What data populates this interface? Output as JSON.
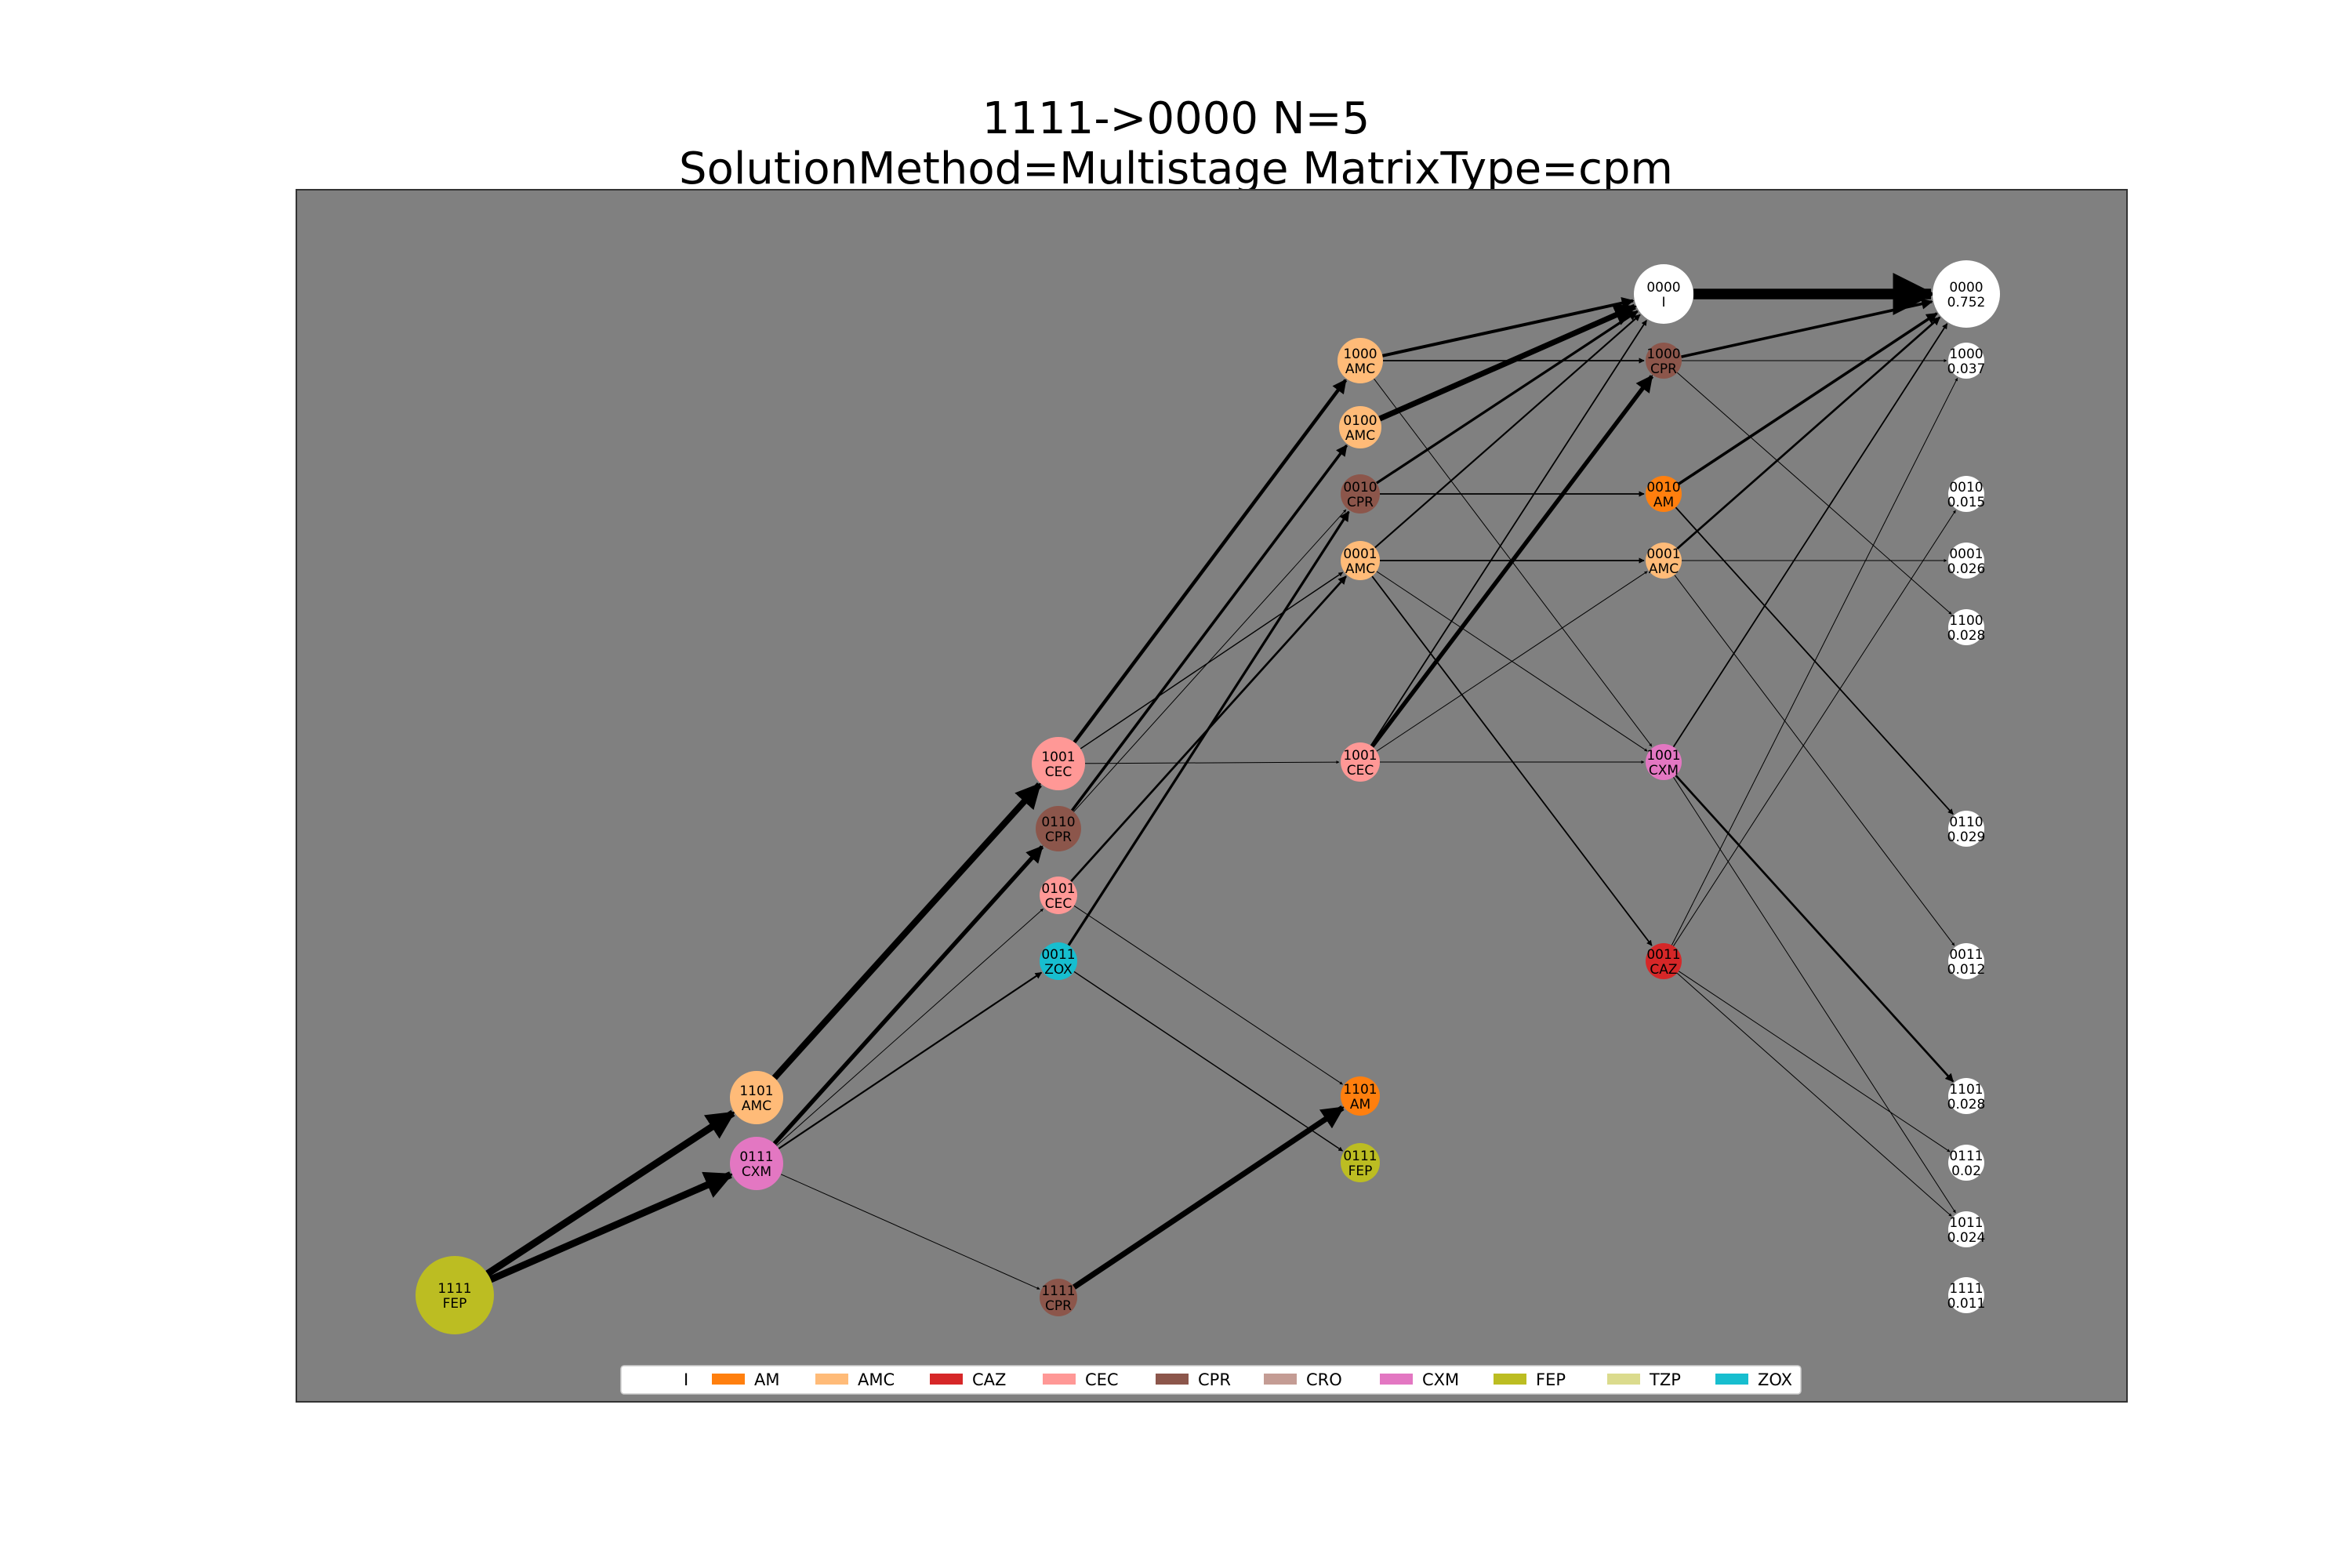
{
  "title": {
    "line1": "1111->0000 N=5",
    "line2": "SolutionMethod=Multistage MatrixType=cpm"
  },
  "colors": {
    "background": "#808080",
    "I": "#ffffff",
    "AM": "#ff7f0e",
    "AMC": "#ffbb78",
    "CAZ": "#d62728",
    "CEC": "#ff9896",
    "CPR": "#8c564b",
    "CRO": "#c49c94",
    "CXM": "#e377c2",
    "FEP": "#bcbd22",
    "TZP": "#dbdb8d",
    "ZOX": "#17becf"
  },
  "legend": [
    "I",
    "AM",
    "AMC",
    "CAZ",
    "CEC",
    "CPR",
    "CRO",
    "CXM",
    "FEP",
    "TZP",
    "ZOX"
  ],
  "nodes": [
    {
      "id": "s0_1111",
      "state": "1111",
      "label": "FEP",
      "color": "FEP",
      "weight": 1.0
    },
    {
      "id": "s1_1101",
      "state": "1101",
      "label": "AMC",
      "color": "AMC",
      "weight": 0.5
    },
    {
      "id": "s1_0111",
      "state": "0111",
      "label": "CXM",
      "color": "CXM",
      "weight": 0.5
    },
    {
      "id": "s2_1001",
      "state": "1001",
      "label": "CEC",
      "color": "CEC",
      "weight": 0.45
    },
    {
      "id": "s2_0110",
      "state": "0110",
      "label": "CPR",
      "color": "CPR",
      "weight": 0.3
    },
    {
      "id": "s2_0101",
      "state": "0101",
      "label": "CEC",
      "color": "CEC",
      "weight": 0.18
    },
    {
      "id": "s2_0011",
      "state": "0011",
      "label": "ZOX",
      "color": "ZOX",
      "weight": 0.16
    },
    {
      "id": "s2_1111",
      "state": "1111",
      "label": "CPR",
      "color": "CPR",
      "weight": 0.12
    },
    {
      "id": "s3_1000",
      "state": "1000",
      "label": "AMC",
      "color": "AMC",
      "weight": 0.25
    },
    {
      "id": "s3_0100",
      "state": "0100",
      "label": "AMC",
      "color": "AMC",
      "weight": 0.2
    },
    {
      "id": "s3_0010",
      "state": "0010",
      "label": "CPR",
      "color": "CPR",
      "weight": 0.18
    },
    {
      "id": "s3_0001",
      "state": "0001",
      "label": "AMC",
      "color": "AMC",
      "weight": 0.18
    },
    {
      "id": "s3_1001",
      "state": "1001",
      "label": "CEC",
      "color": "CEC",
      "weight": 0.12
    },
    {
      "id": "s3_1101",
      "state": "1101",
      "label": "AM",
      "color": "AM",
      "weight": 0.12
    },
    {
      "id": "s3_0111",
      "state": "0111",
      "label": "FEP",
      "color": "FEP",
      "weight": 0.08
    },
    {
      "id": "s4_0000",
      "state": "0000",
      "label": "I",
      "color": "I",
      "weight": 0.5
    },
    {
      "id": "s4_1000",
      "state": "1000",
      "label": "CPR",
      "color": "CPR",
      "weight": 0.1
    },
    {
      "id": "s4_0010",
      "state": "0010",
      "label": "AM",
      "color": "AM",
      "weight": 0.1
    },
    {
      "id": "s4_0001",
      "state": "0001",
      "label": "AMC",
      "color": "AMC",
      "weight": 0.1
    },
    {
      "id": "s4_1001",
      "state": "1001",
      "label": "CXM",
      "color": "CXM",
      "weight": 0.1
    },
    {
      "id": "s4_0011",
      "state": "0011",
      "label": "CAZ",
      "color": "CAZ",
      "weight": 0.1
    },
    {
      "id": "s5_0000",
      "state": "0000",
      "label": "0.752",
      "color": "I",
      "weight": 0.752
    },
    {
      "id": "s5_1000",
      "state": "1000",
      "label": "0.037",
      "color": "I",
      "weight": 0.037
    },
    {
      "id": "s5_0010",
      "state": "0010",
      "label": "0.015",
      "color": "I",
      "weight": 0.015
    },
    {
      "id": "s5_0001",
      "state": "0001",
      "label": "0.026",
      "color": "I",
      "weight": 0.026
    },
    {
      "id": "s5_1100",
      "state": "1100",
      "label": "0.028",
      "color": "I",
      "weight": 0.028
    },
    {
      "id": "s5_0110",
      "state": "0110",
      "label": "0.029",
      "color": "I",
      "weight": 0.029
    },
    {
      "id": "s5_0011",
      "state": "0011",
      "label": "0.012",
      "color": "I",
      "weight": 0.012
    },
    {
      "id": "s5_1101",
      "state": "1101",
      "label": "0.028",
      "color": "I",
      "weight": 0.028
    },
    {
      "id": "s5_0111",
      "state": "0111",
      "label": "0.02",
      "color": "I",
      "weight": 0.02
    },
    {
      "id": "s5_1011",
      "state": "1011",
      "label": "0.024",
      "color": "I",
      "weight": 0.024
    },
    {
      "id": "s5_1111",
      "state": "1111",
      "label": "0.011",
      "color": "I",
      "weight": 0.011
    }
  ],
  "edges": [
    {
      "from": "s0_1111",
      "to": "s1_1101",
      "weight": 0.5
    },
    {
      "from": "s0_1111",
      "to": "s1_0111",
      "weight": 0.5
    },
    {
      "from": "s1_1101",
      "to": "s2_1001",
      "weight": 0.45
    },
    {
      "from": "s1_0111",
      "to": "s2_0110",
      "weight": 0.3
    },
    {
      "from": "s1_0111",
      "to": "s2_0101",
      "weight": 0.05
    },
    {
      "from": "s1_0111",
      "to": "s2_0011",
      "weight": 0.12
    },
    {
      "from": "s1_0111",
      "to": "s2_1111",
      "weight": 0.04
    },
    {
      "from": "s2_1001",
      "to": "s3_1000",
      "weight": 0.25
    },
    {
      "from": "s2_1001",
      "to": "s3_0001",
      "weight": 0.08
    },
    {
      "from": "s2_1001",
      "to": "s3_1001",
      "weight": 0.05
    },
    {
      "from": "s2_0110",
      "to": "s3_0100",
      "weight": 0.2
    },
    {
      "from": "s2_0110",
      "to": "s3_0010",
      "weight": 0.05
    },
    {
      "from": "s2_0101",
      "to": "s3_0001",
      "weight": 0.15
    },
    {
      "from": "s2_0101",
      "to": "s3_1101",
      "weight": 0.02
    },
    {
      "from": "s2_0011",
      "to": "s3_0010",
      "weight": 0.18
    },
    {
      "from": "s2_0011",
      "to": "s3_0111",
      "weight": 0.08
    },
    {
      "from": "s2_1111",
      "to": "s3_1101",
      "weight": 0.4
    },
    {
      "from": "s3_1000",
      "to": "s4_0000",
      "weight": 0.22
    },
    {
      "from": "s3_1000",
      "to": "s4_1000",
      "weight": 0.1
    },
    {
      "from": "s3_1000",
      "to": "s4_1001",
      "weight": 0.03
    },
    {
      "from": "s3_0100",
      "to": "s4_0000",
      "weight": 0.4
    },
    {
      "from": "s3_0010",
      "to": "s4_0000",
      "weight": 0.18
    },
    {
      "from": "s3_0010",
      "to": "s4_0010",
      "weight": 0.1
    },
    {
      "from": "s3_0001",
      "to": "s4_0000",
      "weight": 0.12
    },
    {
      "from": "s3_0001",
      "to": "s4_0001",
      "weight": 0.1
    },
    {
      "from": "s3_0001",
      "to": "s4_1001",
      "weight": 0.03
    },
    {
      "from": "s3_0001",
      "to": "s4_0011",
      "weight": 0.1
    },
    {
      "from": "s3_1001",
      "to": "s4_0000",
      "weight": 0.1
    },
    {
      "from": "s3_1001",
      "to": "s4_1000",
      "weight": 0.3
    },
    {
      "from": "s3_1001",
      "to": "s4_0001",
      "weight": 0.04
    },
    {
      "from": "s3_1001",
      "to": "s4_1001",
      "weight": 0.04
    },
    {
      "from": "s4_0000",
      "to": "s5_0000",
      "weight": 0.752
    },
    {
      "from": "s4_1000",
      "to": "s5_0000",
      "weight": 0.2
    },
    {
      "from": "s4_1000",
      "to": "s5_1000",
      "weight": 0.037
    },
    {
      "from": "s4_1000",
      "to": "s5_1100",
      "weight": 0.028
    },
    {
      "from": "s4_0010",
      "to": "s5_0000",
      "weight": 0.2
    },
    {
      "from": "s4_0010",
      "to": "s5_0110",
      "weight": 0.1
    },
    {
      "from": "s4_0001",
      "to": "s5_0000",
      "weight": 0.15
    },
    {
      "from": "s4_0001",
      "to": "s5_0001",
      "weight": 0.026
    },
    {
      "from": "s4_0001",
      "to": "s5_0011",
      "weight": 0.05
    },
    {
      "from": "s4_1001",
      "to": "s5_0000",
      "weight": 0.1
    },
    {
      "from": "s4_1001",
      "to": "s5_1101",
      "weight": 0.15
    },
    {
      "from": "s4_1001",
      "to": "s5_1011",
      "weight": 0.05
    },
    {
      "from": "s4_0011",
      "to": "s5_0010",
      "weight": 0.05
    },
    {
      "from": "s4_0011",
      "to": "s5_1000",
      "weight": 0.05
    },
    {
      "from": "s4_0011",
      "to": "s5_0111",
      "weight": 0.04
    },
    {
      "from": "s4_0011",
      "to": "s5_1011",
      "weight": 0.04
    }
  ]
}
